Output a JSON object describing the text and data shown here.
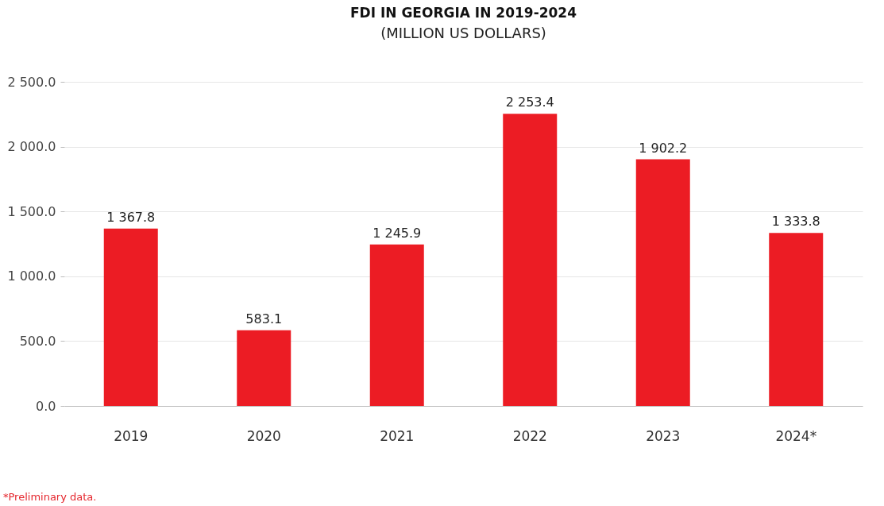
{
  "chart_data": {
    "type": "bar",
    "title": "FDI IN GEORGIA IN 2019-2024",
    "subtitle": "(MILLION US DOLLARS)",
    "categories": [
      "2019",
      "2020",
      "2021",
      "2022",
      "2023",
      "2024*"
    ],
    "values": [
      1367.8,
      583.1,
      1245.9,
      2253.4,
      1902.2,
      1333.8
    ],
    "value_labels": [
      "1 367.8",
      "583.1",
      "1 245.9",
      "2 253.4",
      "1 902.2",
      "1 333.8"
    ],
    "color": "#ec1c24",
    "ylim": [
      0,
      2500
    ],
    "yticks": [
      {
        "value": 0,
        "label": "0.0"
      },
      {
        "value": 500,
        "label": "500.0"
      },
      {
        "value": 1000,
        "label": "1 000.0"
      },
      {
        "value": 1500,
        "label": "1 500.0"
      },
      {
        "value": 2000,
        "label": "2 000.0"
      },
      {
        "value": 2500,
        "label": "2 500.0"
      }
    ],
    "grid": "y",
    "annotations": [
      "*Preliminary data."
    ]
  }
}
